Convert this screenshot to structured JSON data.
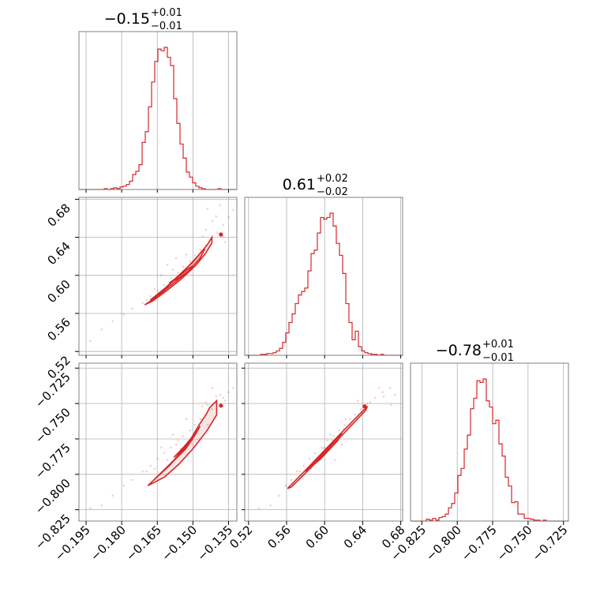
{
  "chart_data": {
    "type": "corner",
    "color": "#d62728",
    "grid": true,
    "params": [
      {
        "title_main": "−0.15",
        "title_plus": "+0.01",
        "title_minus": "−0.01",
        "range": [
          -0.198,
          -0.1315
        ]
      },
      {
        "title_main": "0.61",
        "title_plus": "+0.02",
        "title_minus": "−0.02",
        "range": [
          0.516,
          0.682
        ]
      },
      {
        "title_main": "−0.78",
        "title_plus": "+0.01",
        "title_minus": "−0.01",
        "range": [
          -0.833,
          -0.7215
        ]
      }
    ],
    "ticks": [
      {
        "values": [
          -0.195,
          -0.18,
          -0.165,
          -0.15,
          -0.135
        ],
        "labels": [
          "−0.195",
          "−0.180",
          "−0.165",
          "−0.150",
          "−0.135"
        ]
      },
      {
        "values": [
          0.52,
          0.56,
          0.6,
          0.64,
          0.68
        ],
        "labels": [
          "0.52",
          "0.56",
          "0.60",
          "0.64",
          "0.68"
        ]
      },
      {
        "values": [
          -0.825,
          -0.8,
          -0.775,
          -0.75,
          -0.725
        ],
        "labels": [
          "−0.825",
          "−0.800",
          "−0.775",
          "−0.750",
          "−0.725"
        ]
      }
    ],
    "histograms": [
      {
        "edges": [
          -0.198,
          -0.1315
        ],
        "counts": [
          0,
          0,
          0,
          0,
          0,
          0,
          0,
          0,
          1,
          0,
          1,
          2,
          1,
          3,
          4,
          6,
          10,
          18,
          22,
          30,
          57,
          70,
          100,
          130,
          155,
          170,
          168,
          172,
          160,
          150,
          110,
          80,
          55,
          38,
          21,
          15,
          8,
          4,
          2,
          1,
          0,
          0,
          0,
          0,
          1,
          0,
          0,
          0,
          0,
          0
        ]
      },
      {
        "edges": [
          0.516,
          0.682
        ],
        "counts": [
          0,
          0,
          0,
          0,
          0,
          1,
          1,
          2,
          2,
          3,
          5,
          8,
          15,
          26,
          38,
          48,
          60,
          70,
          74,
          78,
          98,
          118,
          122,
          142,
          160,
          158,
          160,
          165,
          150,
          130,
          116,
          95,
          60,
          38,
          18,
          28,
          10,
          5,
          3,
          2,
          1,
          1,
          0,
          1,
          0,
          0,
          0,
          0,
          0,
          0
        ]
      },
      {
        "edges": [
          -0.833,
          -0.7215
        ],
        "counts": [
          0,
          0,
          0,
          0,
          0,
          2,
          1,
          3,
          1,
          4,
          5,
          8,
          15,
          20,
          32,
          52,
          60,
          82,
          98,
          128,
          140,
          160,
          158,
          162,
          137,
          130,
          111,
          115,
          88,
          74,
          50,
          40,
          21,
          22,
          8,
          8,
          3,
          3,
          2,
          1,
          1,
          0,
          1,
          0,
          0,
          0,
          0,
          0,
          0,
          0
        ]
      }
    ],
    "samples": [
      [
        -0.1932,
        0.531,
        -0.824
      ],
      [
        -0.1885,
        0.543,
        -0.822
      ],
      [
        -0.1838,
        0.552,
        -0.815
      ],
      [
        -0.1791,
        0.559,
        -0.808
      ],
      [
        -0.1755,
        0.565,
        -0.804
      ],
      [
        -0.1712,
        0.571,
        -0.798
      ],
      [
        -0.1678,
        0.578,
        -0.794
      ],
      [
        -0.1648,
        0.584,
        -0.789
      ],
      [
        -0.1621,
        0.59,
        -0.785
      ],
      [
        -0.1592,
        0.597,
        -0.781
      ],
      [
        -0.1563,
        0.603,
        -0.776
      ],
      [
        -0.1541,
        0.609,
        -0.773
      ],
      [
        -0.1513,
        0.615,
        -0.769
      ],
      [
        -0.1492,
        0.621,
        -0.765
      ],
      [
        -0.1468,
        0.627,
        -0.761
      ],
      [
        -0.1447,
        0.632,
        -0.758
      ],
      [
        -0.1421,
        0.638,
        -0.754
      ],
      [
        -0.1398,
        0.645,
        -0.75
      ],
      [
        -0.1372,
        0.653,
        -0.746
      ],
      [
        -0.1349,
        0.661,
        -0.742
      ],
      [
        -0.1331,
        0.669,
        -0.739
      ],
      [
        -0.1402,
        0.662,
        -0.745
      ],
      [
        -0.1445,
        0.648,
        -0.749
      ],
      [
        -0.1418,
        0.657,
        -0.739
      ],
      [
        -0.1372,
        0.641,
        -0.752
      ],
      [
        -0.1385,
        0.674,
        -0.744
      ],
      [
        -0.1438,
        0.67,
        -0.751
      ],
      [
        -0.1364,
        0.635,
        -0.748
      ],
      [
        -0.1571,
        0.618,
        -0.779
      ],
      [
        -0.1608,
        0.611,
        -0.79
      ],
      [
        -0.1695,
        0.574,
        -0.798
      ],
      [
        -0.1662,
        0.586,
        -0.796
      ],
      [
        -0.1633,
        0.6,
        -0.781
      ],
      [
        -0.1585,
        0.606,
        -0.772
      ],
      [
        -0.1527,
        0.622,
        -0.761
      ],
      [
        -0.1482,
        0.62,
        -0.768
      ],
      [
        -0.1459,
        0.641,
        -0.752
      ],
      [
        -0.1437,
        0.627,
        -0.765
      ],
      [
        -0.1506,
        0.608,
        -0.776
      ],
      [
        -0.1551,
        0.598,
        -0.782
      ]
    ],
    "contours_12": [
      {
        "level": "outer",
        "pts": [
          [
            -0.1703,
            0.569
          ],
          [
            -0.166,
            0.576
          ],
          [
            -0.16,
            0.59
          ],
          [
            -0.154,
            0.604
          ],
          [
            -0.148,
            0.62
          ],
          [
            -0.144,
            0.632
          ],
          [
            -0.142,
            0.64
          ],
          [
            -0.142,
            0.634
          ],
          [
            -0.145,
            0.622
          ],
          [
            -0.149,
            0.61
          ],
          [
            -0.155,
            0.596
          ],
          [
            -0.161,
            0.584
          ],
          [
            -0.167,
            0.573
          ],
          [
            -0.1703,
            0.569
          ]
        ]
      },
      {
        "level": "mid",
        "pts": [
          [
            -0.168,
            0.574
          ],
          [
            -0.162,
            0.586
          ],
          [
            -0.156,
            0.6
          ],
          [
            -0.15,
            0.614
          ],
          [
            -0.146,
            0.626
          ],
          [
            -0.145,
            0.628
          ],
          [
            -0.147,
            0.618
          ],
          [
            -0.152,
            0.604
          ],
          [
            -0.158,
            0.592
          ],
          [
            -0.164,
            0.58
          ],
          [
            -0.168,
            0.574
          ]
        ]
      },
      {
        "level": "inner",
        "pts": [
          [
            -0.16,
            0.592
          ],
          [
            -0.156,
            0.599
          ],
          [
            -0.152,
            0.607
          ],
          [
            -0.15,
            0.61
          ],
          [
            -0.152,
            0.604
          ],
          [
            -0.156,
            0.597
          ],
          [
            -0.16,
            0.592
          ]
        ]
      }
    ],
    "contours_13": [
      {
        "level": "outer",
        "pts": [
          [
            -0.169,
            -0.808
          ],
          [
            -0.164,
            -0.8
          ],
          [
            -0.158,
            -0.79
          ],
          [
            -0.152,
            -0.778
          ],
          [
            -0.147,
            -0.764
          ],
          [
            -0.1445,
            -0.758
          ],
          [
            -0.143,
            -0.753
          ],
          [
            -0.14,
            -0.748
          ],
          [
            -0.14,
            -0.758
          ],
          [
            -0.144,
            -0.769
          ],
          [
            -0.15,
            -0.782
          ],
          [
            -0.156,
            -0.793
          ],
          [
            -0.162,
            -0.802
          ],
          [
            -0.169,
            -0.808
          ]
        ]
      },
      {
        "level": "mid",
        "pts": [
          [
            -0.1665,
            -0.804
          ],
          [
            -0.16,
            -0.794
          ],
          [
            -0.1545,
            -0.784
          ],
          [
            -0.15,
            -0.774
          ],
          [
            -0.147,
            -0.766
          ],
          [
            -0.149,
            -0.772
          ],
          [
            -0.153,
            -0.782
          ],
          [
            -0.159,
            -0.792
          ],
          [
            -0.1665,
            -0.804
          ]
        ]
      },
      {
        "level": "inner",
        "pts": [
          [
            -0.158,
            -0.788
          ],
          [
            -0.154,
            -0.781
          ],
          [
            -0.151,
            -0.775
          ],
          [
            -0.153,
            -0.78
          ],
          [
            -0.158,
            -0.788
          ]
        ]
      }
    ],
    "contours_23": [
      {
        "level": "outer",
        "pts": [
          [
            0.561,
            -0.81
          ],
          [
            0.58,
            -0.797
          ],
          [
            0.6,
            -0.783
          ],
          [
            0.62,
            -0.769
          ],
          [
            0.636,
            -0.758
          ],
          [
            0.645,
            -0.752
          ],
          [
            0.643,
            -0.755
          ],
          [
            0.626,
            -0.767
          ],
          [
            0.606,
            -0.781
          ],
          [
            0.586,
            -0.795
          ],
          [
            0.565,
            -0.809
          ],
          [
            0.561,
            -0.81
          ]
        ]
      },
      {
        "level": "inner",
        "pts": [
          [
            0.58,
            -0.798
          ],
          [
            0.6,
            -0.784
          ],
          [
            0.618,
            -0.771
          ],
          [
            0.614,
            -0.776
          ],
          [
            0.596,
            -0.789
          ],
          [
            0.58,
            -0.798
          ]
        ]
      }
    ],
    "peaks": [
      {
        "pair": "12",
        "x": -0.1382,
        "y": 0.643
      },
      {
        "pair": "13",
        "x": -0.1382,
        "y": -0.7515
      },
      {
        "pair": "23",
        "x": 0.642,
        "y": -0.752
      }
    ]
  }
}
